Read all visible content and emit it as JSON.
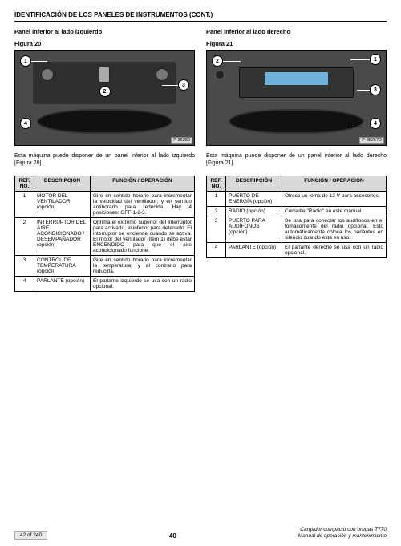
{
  "page_title": "IDENTIFICACIÓN DE LOS PANELES DE INSTRUMENTOS (CONT.)",
  "footer": {
    "page_of": "42 of 240",
    "page_num": "40",
    "doc_line1": "Cargador compacto con orugas T770",
    "doc_line2": "Manual de operación y mantenimiento"
  },
  "left": {
    "panel_title": "Panel inferior al lado izquierdo",
    "fig_label": "Figura 20",
    "fig_tag": "P-85282",
    "caption": "Esta máquina puede disponer de un panel inferior al lado izquierdo [Figura 20].",
    "th_ref": "REF. NO.",
    "th_desc": "DESCRIPCIÓN",
    "th_func": "FUNCIÓN / OPERACIÓN",
    "rows": [
      {
        "n": "1",
        "d": "MOTOR DEL VENTILADOR (opción)",
        "f": "Gire en sentido horario para incrementar la velocidad del ventilador; y en sentido antihorario para reducirla. Hay 4 posiciones: OFF-1-2-3."
      },
      {
        "n": "2",
        "d": "INTERRUPTOR DEL AIRE ACONDICIONADO / DESEMPAÑADOR (opción)",
        "f": "Oprima el extremo superior del interruptor para activarlo; el inferior para detenerlo. El interruptor se enciende cuando se activa. El motor del ventilador (ítem 1) debe estar ENCENDIDO para que el aire acondicionado funcione."
      },
      {
        "n": "3",
        "d": "CONTROL DE TEMPERATURA (opción)",
        "f": "Gire en sentido horario para incrementar la temperatura; y al contrario para reducirla."
      },
      {
        "n": "4",
        "d": "PARLANTE (opción)",
        "f": "El parlante izquierdo se usa con un radio opcional."
      }
    ]
  },
  "right": {
    "panel_title": "Panel inferior al lado derecho",
    "fig_label": "Figura 21",
    "fig_tag": "P-85267D",
    "caption": "Esta máquina puede disponer de un panel inferior al lado derecho [Figura 21].",
    "th_ref": "REF. NO.",
    "th_desc": "DESCRIPCIÓN",
    "th_func": "FUNCIÓN / OPERACIÓN",
    "rows": [
      {
        "n": "1",
        "d": "PUERTO DE ENERGÍA (opción)",
        "f": "Ofrece un toma de 12 V para accesorios."
      },
      {
        "n": "2",
        "d": "RADIO (opción)",
        "f": "Consulte \"Radio\" en este manual."
      },
      {
        "n": "3",
        "d": "PUERTO PARA AUDÍFONOS (opción)",
        "f": "Se usa para conectar los audífonos en el tomacorriente del radio opcional. Esto automáticamente coloca los parlantes en silencio cuando está en uso."
      },
      {
        "n": "4",
        "d": "PARLANTE (opción)",
        "f": "El parlante derecho se usa con un radio opcional."
      }
    ]
  },
  "colors": {
    "border": "#000000",
    "header_bg": "#d9d9d9",
    "fig_bg": "#4a4a4a"
  }
}
